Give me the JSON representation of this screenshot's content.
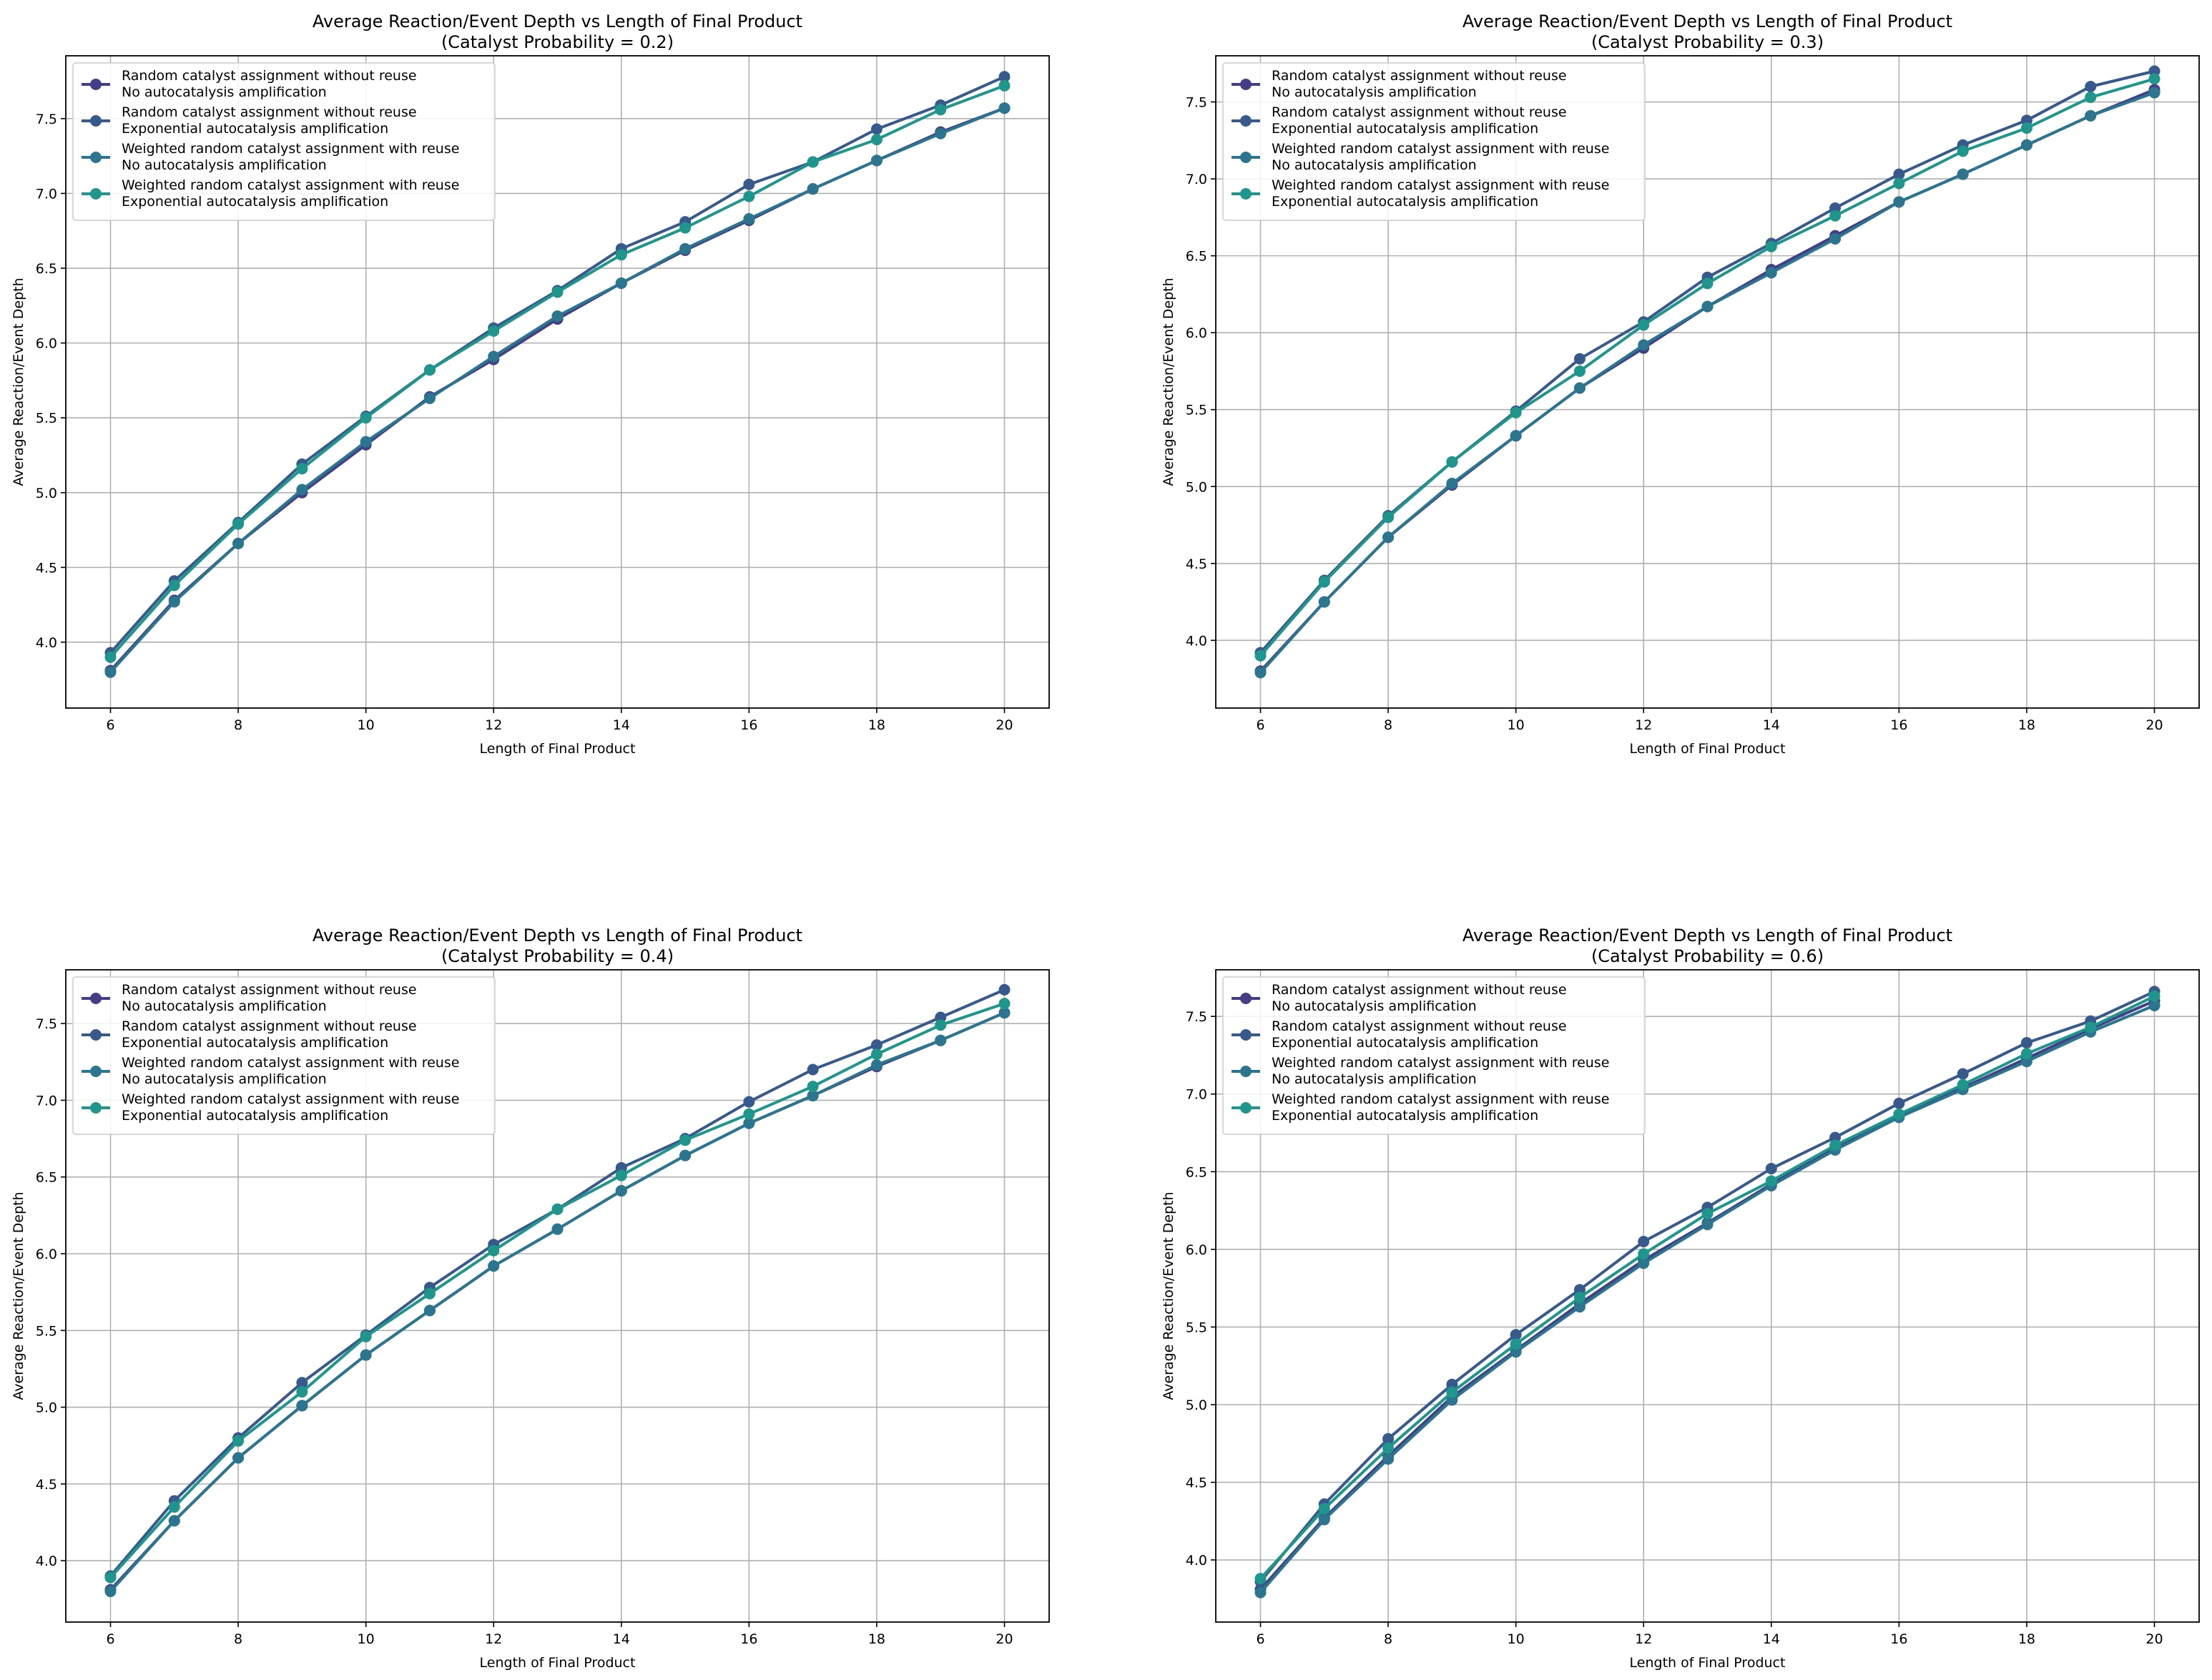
{
  "colors": {
    "series": [
      "#433e85",
      "#38598c",
      "#2b758e",
      "#1f968b"
    ],
    "grid": "#b0b0b0",
    "axis": "#000000",
    "background": "#ffffff"
  },
  "chart_data": [
    {
      "type": "line",
      "title": "Average Reaction/Event Depth vs Length of Final Product",
      "subtitle": "(Catalyst Probability = 0.2)",
      "xlabel": "Length of Final Product",
      "ylabel": "Average Reaction/Event Depth",
      "xlim": [
        5.3,
        20.7
      ],
      "ylim": [
        3.56,
        7.92
      ],
      "xticks": [
        6,
        8,
        10,
        12,
        14,
        16,
        18,
        20
      ],
      "yticks": [
        4.0,
        4.5,
        5.0,
        5.5,
        6.0,
        6.5,
        7.0,
        7.5
      ],
      "grid": true,
      "legend": "top-left",
      "x": [
        6,
        7,
        8,
        9,
        10,
        11,
        12,
        13,
        14,
        15,
        16,
        17,
        18,
        19,
        20
      ],
      "series": [
        {
          "name": "Random catalyst assignment without reuse\nNo autocatalysis amplification",
          "values": [
            3.81,
            4.28,
            4.66,
            5.0,
            5.32,
            5.64,
            5.89,
            6.16,
            6.4,
            6.62,
            6.82,
            7.03,
            7.22,
            7.41,
            7.57
          ]
        },
        {
          "name": "Random catalyst assignment without reuse\nExponential autocatalysis amplification",
          "values": [
            3.93,
            4.41,
            4.8,
            5.19,
            5.51,
            5.82,
            6.1,
            6.35,
            6.63,
            6.81,
            7.06,
            7.21,
            7.43,
            7.59,
            7.78
          ]
        },
        {
          "name": "Weighted random catalyst assignment with reuse\nNo autocatalysis amplification",
          "values": [
            3.8,
            4.27,
            4.66,
            5.02,
            5.34,
            5.63,
            5.91,
            6.18,
            6.4,
            6.63,
            6.83,
            7.03,
            7.22,
            7.4,
            7.57
          ]
        },
        {
          "name": "Weighted random catalyst assignment with reuse\nExponential autocatalysis amplification",
          "values": [
            3.9,
            4.38,
            4.79,
            5.16,
            5.5,
            5.82,
            6.08,
            6.34,
            6.59,
            6.77,
            6.98,
            7.21,
            7.36,
            7.56,
            7.72
          ]
        }
      ]
    },
    {
      "type": "line",
      "title": "Average Reaction/Event Depth vs Length of Final Product",
      "subtitle": "(Catalyst Probability = 0.3)",
      "xlabel": "Length of Final Product",
      "ylabel": "Average Reaction/Event Depth",
      "xlim": [
        5.3,
        20.7
      ],
      "ylim": [
        3.56,
        7.8
      ],
      "xticks": [
        6,
        8,
        10,
        12,
        14,
        16,
        18,
        20
      ],
      "yticks": [
        4.0,
        4.5,
        5.0,
        5.5,
        6.0,
        6.5,
        7.0,
        7.5
      ],
      "grid": true,
      "legend": "top-left",
      "x": [
        6,
        7,
        8,
        9,
        10,
        11,
        12,
        13,
        14,
        15,
        16,
        17,
        18,
        19,
        20
      ],
      "series": [
        {
          "name": "Random catalyst assignment without reuse\nNo autocatalysis amplification",
          "values": [
            3.8,
            4.25,
            4.67,
            5.01,
            5.33,
            5.64,
            5.9,
            6.17,
            6.41,
            6.63,
            6.85,
            7.03,
            7.22,
            7.41,
            7.58
          ]
        },
        {
          "name": "Random catalyst assignment without reuse\nExponential autocatalysis amplification",
          "values": [
            3.92,
            4.39,
            4.81,
            5.16,
            5.49,
            5.83,
            6.07,
            6.36,
            6.58,
            6.81,
            7.03,
            7.22,
            7.38,
            7.6,
            7.7
          ]
        },
        {
          "name": "Weighted random catalyst assignment with reuse\nNo autocatalysis amplification",
          "values": [
            3.79,
            4.25,
            4.67,
            5.02,
            5.33,
            5.64,
            5.92,
            6.17,
            6.39,
            6.61,
            6.85,
            7.03,
            7.22,
            7.41,
            7.56
          ]
        },
        {
          "name": "Weighted random catalyst assignment with reuse\nExponential autocatalysis amplification",
          "values": [
            3.9,
            4.38,
            4.8,
            5.16,
            5.48,
            5.75,
            6.05,
            6.32,
            6.56,
            6.76,
            6.97,
            7.18,
            7.33,
            7.53,
            7.65
          ]
        }
      ]
    },
    {
      "type": "line",
      "title": "Average Reaction/Event Depth vs Length of Final Product",
      "subtitle": "(Catalyst Probability = 0.4)",
      "xlabel": "Length of Final Product",
      "ylabel": "Average Reaction/Event Depth",
      "xlim": [
        5.3,
        20.7
      ],
      "ylim": [
        3.6,
        7.85
      ],
      "xticks": [
        6,
        8,
        10,
        12,
        14,
        16,
        18,
        20
      ],
      "yticks": [
        4.0,
        4.5,
        5.0,
        5.5,
        6.0,
        6.5,
        7.0,
        7.5
      ],
      "grid": true,
      "legend": "top-left",
      "x": [
        6,
        7,
        8,
        9,
        10,
        11,
        12,
        13,
        14,
        15,
        16,
        17,
        18,
        19,
        20
      ],
      "series": [
        {
          "name": "Random catalyst assignment without reuse\nNo autocatalysis amplification",
          "values": [
            3.81,
            4.26,
            4.67,
            5.01,
            5.34,
            5.63,
            5.92,
            6.16,
            6.41,
            6.64,
            6.85,
            7.03,
            7.22,
            7.39,
            7.57
          ]
        },
        {
          "name": "Random catalyst assignment without reuse\nExponential autocatalysis amplification",
          "values": [
            3.9,
            4.39,
            4.8,
            5.16,
            5.47,
            5.78,
            6.06,
            6.29,
            6.56,
            6.75,
            6.99,
            7.2,
            7.36,
            7.54,
            7.72
          ]
        },
        {
          "name": "Weighted random catalyst assignment with reuse\nNo autocatalysis amplification",
          "values": [
            3.8,
            4.26,
            4.67,
            5.01,
            5.34,
            5.63,
            5.92,
            6.16,
            6.41,
            6.64,
            6.85,
            7.03,
            7.23,
            7.39,
            7.57
          ]
        },
        {
          "name": "Weighted random catalyst assignment with reuse\nExponential autocatalysis amplification",
          "values": [
            3.89,
            4.35,
            4.78,
            5.1,
            5.46,
            5.74,
            6.02,
            6.29,
            6.51,
            6.74,
            6.91,
            7.09,
            7.3,
            7.49,
            7.63
          ]
        }
      ]
    },
    {
      "type": "line",
      "title": "Average Reaction/Event Depth vs Length of Final Product",
      "subtitle": "(Catalyst Probability = 0.6)",
      "xlabel": "Length of Final Product",
      "ylabel": "Average Reaction/Event Depth",
      "xlim": [
        5.3,
        20.7
      ],
      "ylim": [
        3.6,
        7.8
      ],
      "xticks": [
        6,
        8,
        10,
        12,
        14,
        16,
        18,
        20
      ],
      "yticks": [
        4.0,
        4.5,
        5.0,
        5.5,
        6.0,
        6.5,
        7.0,
        7.5
      ],
      "grid": true,
      "legend": "top-left",
      "x": [
        6,
        7,
        8,
        9,
        10,
        11,
        12,
        13,
        14,
        15,
        16,
        17,
        18,
        19,
        20
      ],
      "series": [
        {
          "name": "Random catalyst assignment without reuse\nNo autocatalysis amplification",
          "values": [
            3.81,
            4.27,
            4.67,
            5.05,
            5.35,
            5.65,
            5.93,
            6.17,
            6.42,
            6.65,
            6.86,
            7.04,
            7.23,
            7.42,
            7.6
          ]
        },
        {
          "name": "Random catalyst assignment without reuse\nExponential autocatalysis amplification",
          "values": [
            3.86,
            4.36,
            4.78,
            5.13,
            5.45,
            5.74,
            6.05,
            6.27,
            6.52,
            6.72,
            6.94,
            7.13,
            7.33,
            7.47,
            7.66
          ]
        },
        {
          "name": "Weighted random catalyst assignment with reuse\nNo autocatalysis amplification",
          "values": [
            3.79,
            4.26,
            4.65,
            5.03,
            5.34,
            5.63,
            5.91,
            6.16,
            6.41,
            6.64,
            6.85,
            7.03,
            7.21,
            7.4,
            7.57
          ]
        },
        {
          "name": "Weighted random catalyst assignment with reuse\nExponential autocatalysis amplification",
          "values": [
            3.88,
            4.33,
            4.72,
            5.08,
            5.39,
            5.69,
            5.97,
            6.23,
            6.44,
            6.67,
            6.87,
            7.06,
            7.26,
            7.43,
            7.63
          ]
        }
      ]
    }
  ]
}
